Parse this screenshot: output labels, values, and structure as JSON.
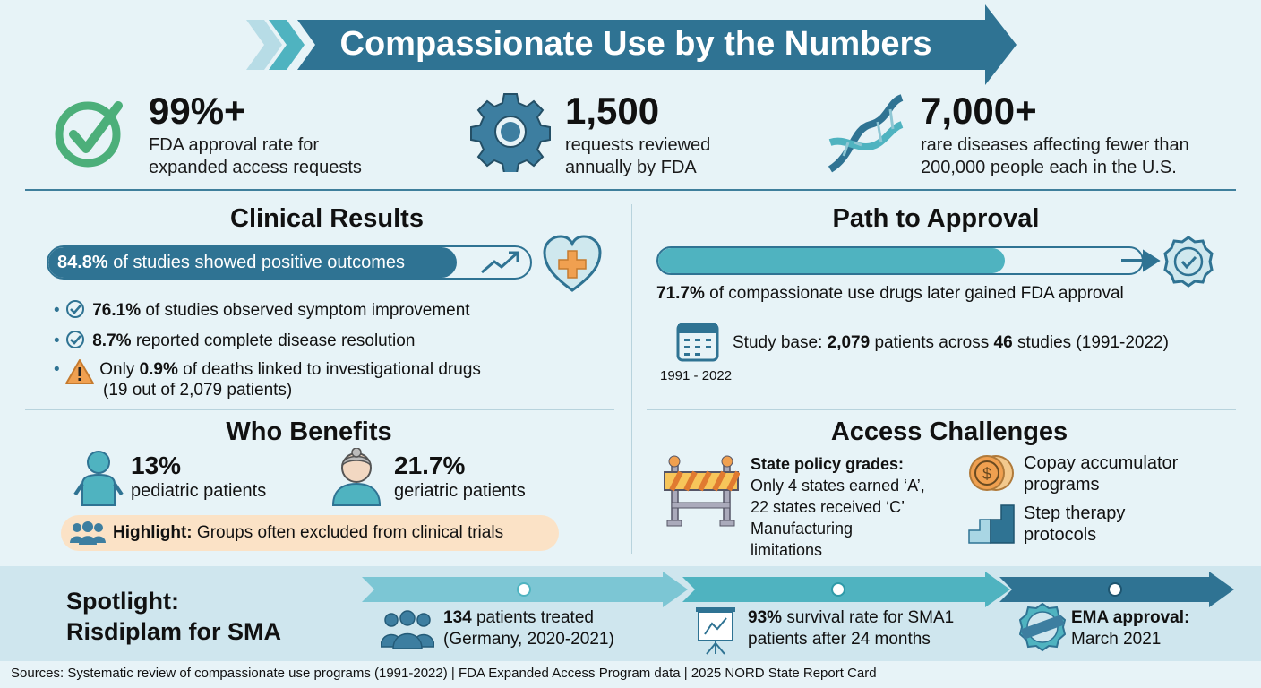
{
  "title": "Compassionate Use by the Numbers",
  "stats": [
    {
      "icon": "check-circle-icon",
      "value": "99%+",
      "label_1": "FDA approval rate for",
      "label_2": "expanded access requests"
    },
    {
      "icon": "gear-icon",
      "value": "1,500",
      "label_1": "requests reviewed",
      "label_2": "annually by FDA"
    },
    {
      "icon": "dna-icon",
      "value": "7,000+",
      "label_1": "rare diseases affecting fewer than",
      "label_2": "200,000 people each in the U.S."
    }
  ],
  "clinical": {
    "heading": "Clinical Results",
    "bar": {
      "value": "84.8%",
      "text": "of studies showed positive outcomes",
      "fill_percent": 84.8
    },
    "items": [
      {
        "icon": "check-badge-icon",
        "value": "76.1%",
        "text": "of studies observed symptom improvement"
      },
      {
        "icon": "check-badge-icon",
        "value": "8.7%",
        "text": "reported complete disease resolution"
      },
      {
        "icon": "warning-icon",
        "prefix": "Only",
        "value": "0.9%",
        "text": "of deaths linked to investigational drugs",
        "text_2": "(19 out of 2,079 patients)"
      }
    ]
  },
  "path": {
    "heading": "Path to Approval",
    "fill_percent": 71.7,
    "value": "71.7%",
    "text": "of compassionate use drugs later gained FDA approval",
    "study_prefix": "Study base:",
    "patients": "2,079",
    "mid": "patients across",
    "studies": "46",
    "suffix": "studies (1991-2022)",
    "calendar_label": "1991 - 2022"
  },
  "benefits": {
    "heading": "Who Benefits",
    "groups": [
      {
        "value": "13%",
        "label": "pediatric patients"
      },
      {
        "value": "21.7%",
        "label": "geriatric patients"
      }
    ],
    "highlight_label": "Highlight:",
    "highlight_text": "Groups often excluded from clinical trials"
  },
  "challenges": {
    "heading": "Access Challenges",
    "state_title": "State policy grades:",
    "state_lines": [
      "Only 4 states earned ‘A’,",
      "22 states received ‘C’",
      "Manufacturing",
      "limitations"
    ],
    "copay": [
      "Copay accumulator",
      "programs"
    ],
    "step": [
      "Step therapy",
      "protocols"
    ]
  },
  "spotlight": {
    "title_1": "Spotlight:",
    "title_2": "Risdiplam for SMA",
    "steps": [
      {
        "bold": "134",
        "text": "patients treated",
        "text_2": "(Germany, 2020-2021)"
      },
      {
        "bold": "93%",
        "text": "survival rate for SMA1",
        "text_2": "patients after 24 months"
      },
      {
        "bold": "EMA approval:",
        "text": "",
        "text_2": "March 2021",
        "stamp": "APPROVED"
      }
    ]
  },
  "sources": "Sources: Systematic review of compassionate use programs (1991-2022) | FDA Expanded Access Program data | 2025 NORD State Report Card",
  "colors": {
    "primary": "#2f7393",
    "teal": "#4fb3c0",
    "green": "#4caf7a",
    "orange": "#f0a050",
    "light_bg": "#e7f3f7"
  }
}
